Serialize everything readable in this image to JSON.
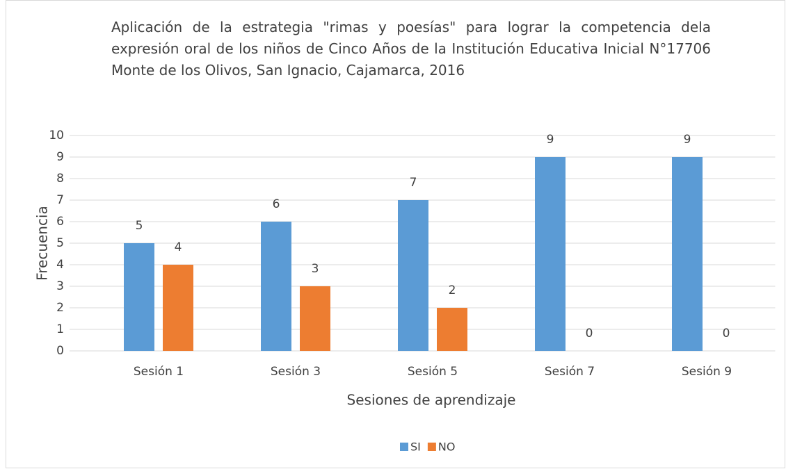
{
  "chart_data": {
    "type": "bar",
    "title": "Aplicación de la estrategia \"rimas y poesías\" para lograr la competencia dela expresión oral de los niños de Cinco Años de la Institución Educativa Inicial N°17706 Monte de los Olivos, San Ignacio, Cajamarca, 2016",
    "x_label": "Sesiones de aprendizaje",
    "y_label": "Frecuencia",
    "categories": [
      "Sesión 1",
      "Sesión 3",
      "Sesión 5",
      "Sesión 7",
      "Sesión 9"
    ],
    "series": [
      {
        "name": "SI",
        "color": "#5b9bd5",
        "values": [
          5,
          6,
          7,
          9,
          9
        ]
      },
      {
        "name": "NO",
        "color": "#ed7d31",
        "values": [
          4,
          3,
          2,
          0,
          0
        ]
      }
    ],
    "ylim": [
      0,
      10
    ],
    "yticks": [
      0,
      1,
      2,
      3,
      4,
      5,
      6,
      7,
      8,
      9,
      10
    ],
    "grid": true,
    "legend": "bottom"
  }
}
